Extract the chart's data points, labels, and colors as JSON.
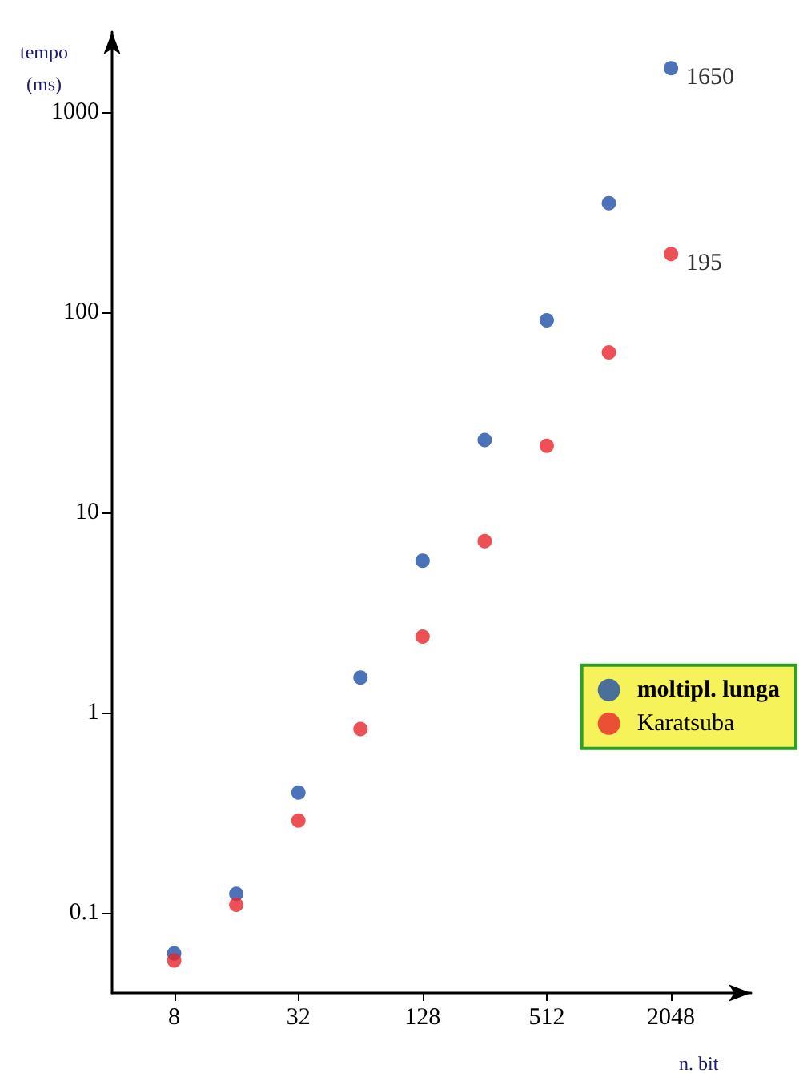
{
  "chart_data": {
    "type": "scatter",
    "xlabel": "n. bit",
    "ylabel": "tempo\n(ms)",
    "x": [
      8,
      16,
      32,
      64,
      128,
      256,
      512,
      1024,
      2048
    ],
    "series": [
      {
        "name": "moltipl. lunga",
        "color": "#1f4fa8",
        "values": [
          0.063,
          0.125,
          0.4,
          1.5,
          5.75,
          23,
          91,
          350,
          1650
        ],
        "value_labels": [
          null,
          null,
          null,
          null,
          null,
          null,
          null,
          null,
          "1650"
        ]
      },
      {
        "name": "Karatsuba",
        "color": "#e8262a",
        "values": [
          0.058,
          0.11,
          0.29,
          0.83,
          2.4,
          7.2,
          21.5,
          63,
          195
        ],
        "value_labels": [
          null,
          null,
          null,
          null,
          null,
          null,
          null,
          null,
          "195"
        ]
      }
    ],
    "log": "xy",
    "xlim": [
      4,
      5000
    ],
    "ylim": [
      0.04,
      2500
    ],
    "xticks": [
      8,
      32,
      128,
      512,
      2048
    ],
    "yticks": [
      0.1,
      1,
      10,
      100,
      1000
    ],
    "marker": "circle",
    "grid": false,
    "legend": "right"
  }
}
